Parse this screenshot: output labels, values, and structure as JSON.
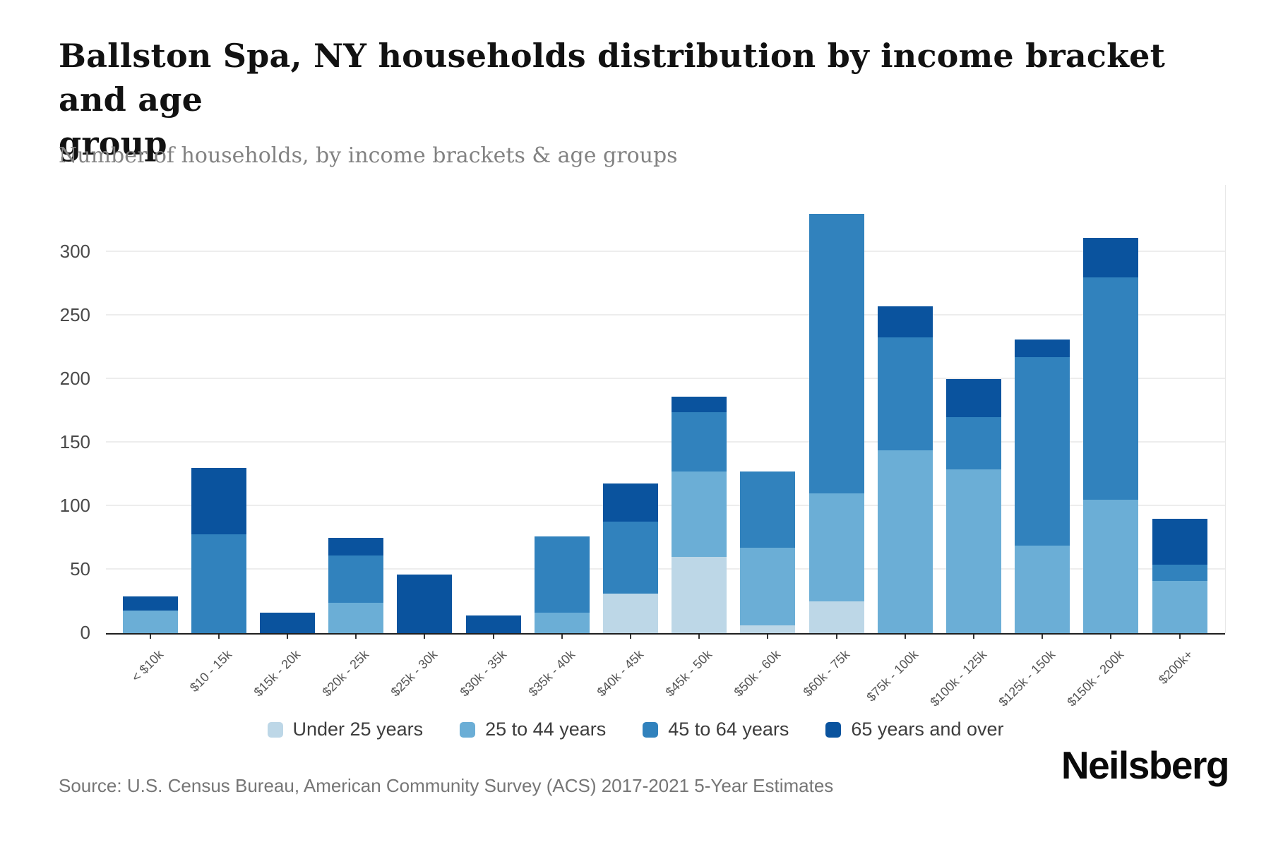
{
  "header": {
    "title": "Ballston Spa, NY households distribution by income bracket and age\ngroup",
    "subtitle": "Number of households, by income brackets & age groups"
  },
  "footer": {
    "source": "Source: U.S. Census Bureau, American Community Survey (ACS) 2017-2021 5-Year Estimates",
    "logo": "Neilsberg"
  },
  "chart_data": {
    "type": "bar",
    "stacked": true,
    "title": "Ballston Spa, NY households distribution by income bracket and age group",
    "subtitle": "Number of households, by income brackets & age groups",
    "xlabel": "",
    "ylabel": "Number of households",
    "grid": true,
    "legend_position": "bottom",
    "ylim": [
      0,
      353
    ],
    "yticks": [
      0,
      50,
      100,
      150,
      200,
      250,
      300
    ],
    "categories": [
      "< $10k",
      "$10 - 15k",
      "$15k - 20k",
      "$20k - 25k",
      "$25k - 30k",
      "$30k - 35k",
      "$35k - 40k",
      "$40k - 45k",
      "$45k - 50k",
      "$50k - 60k",
      "$60k - 75k",
      "$75k - 100k",
      "$100k - 125k",
      "$125k - 150k",
      "$150k - 200k",
      "$200k+"
    ],
    "series": [
      {
        "name": "Under 25 years",
        "color": "#bdd7e7",
        "values": [
          0,
          0,
          0,
          0,
          0,
          0,
          0,
          31,
          60,
          6,
          25,
          0,
          0,
          0,
          0,
          0
        ]
      },
      {
        "name": "25 to 44 years",
        "color": "#6baed6",
        "values": [
          18,
          0,
          0,
          24,
          0,
          0,
          16,
          0,
          67,
          61,
          85,
          144,
          129,
          69,
          105,
          41
        ]
      },
      {
        "name": "45 to 64 years",
        "color": "#3182bd",
        "values": [
          0,
          78,
          0,
          37,
          0,
          0,
          60,
          57,
          47,
          60,
          220,
          89,
          41,
          148,
          175,
          13
        ]
      },
      {
        "name": "65 years and over",
        "color": "#0a539e",
        "values": [
          11,
          52,
          16,
          14,
          46,
          14,
          0,
          30,
          12,
          0,
          0,
          24,
          30,
          14,
          31,
          36
        ]
      }
    ],
    "totals": [
      29,
      130,
      16,
      75,
      46,
      14,
      76,
      118,
      186,
      127,
      330,
      257,
      200,
      231,
      311,
      90
    ]
  }
}
